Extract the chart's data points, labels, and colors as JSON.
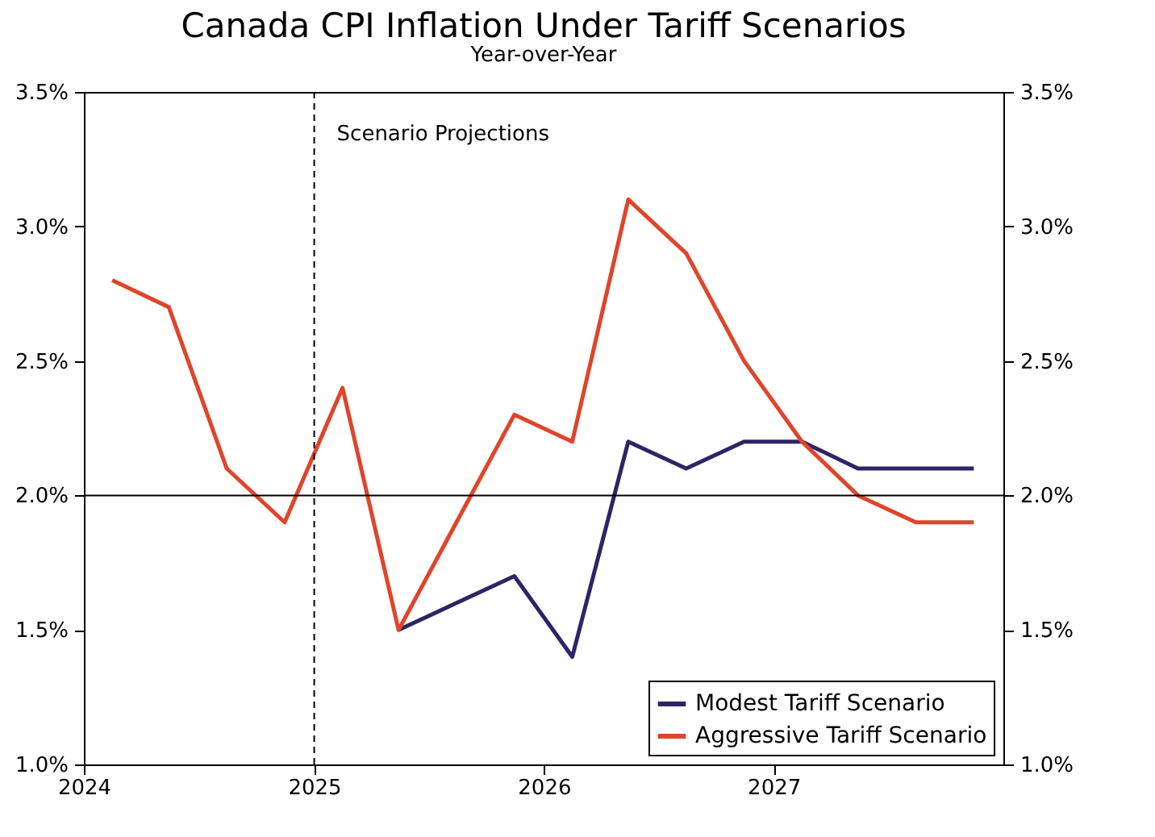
{
  "chart_data": {
    "type": "line",
    "title": "Canada CPI Inflation Under Tariff Scenarios",
    "subtitle": "Year-over-Year",
    "x": [
      "2024-02-15",
      "2024-05-15",
      "2024-08-15",
      "2024-11-15",
      "2025-02-15",
      "2025-05-15",
      "2025-08-15",
      "2025-11-15",
      "2026-02-15",
      "2026-05-15",
      "2026-08-15",
      "2026-11-15",
      "2027-02-15",
      "2027-05-15",
      "2027-08-15",
      "2027-11-15"
    ],
    "series": [
      {
        "name": "Modest Tariff Scenario",
        "color": "#2e2466",
        "values": [
          null,
          null,
          null,
          null,
          null,
          1.5,
          1.6,
          1.7,
          1.4,
          2.2,
          2.1,
          2.2,
          2.2,
          2.1,
          2.1,
          2.1
        ]
      },
      {
        "name": "Aggressive Tariff Scenario",
        "color": "#e0442a",
        "values": [
          2.8,
          2.7,
          2.1,
          1.9,
          2.4,
          1.5,
          1.9,
          2.3,
          2.2,
          3.1,
          2.9,
          2.5,
          2.2,
          2.0,
          1.9,
          1.9
        ]
      }
    ],
    "xlim": [
      "2024-01-01",
      "2028-01-01"
    ],
    "xticks": [
      {
        "value": "2024",
        "label": "2024"
      },
      {
        "value": "2025",
        "label": "2025"
      },
      {
        "value": "2026",
        "label": "2026"
      },
      {
        "value": "2027",
        "label": "2027"
      }
    ],
    "ylim": [
      1.0,
      3.5
    ],
    "yticks": [
      {
        "value": 1.0,
        "label": "1.0%"
      },
      {
        "value": 1.5,
        "label": "1.5%"
      },
      {
        "value": 2.0,
        "label": "2.0%"
      },
      {
        "value": 2.5,
        "label": "2.5%"
      },
      {
        "value": 3.0,
        "label": "3.0%"
      },
      {
        "value": 3.5,
        "label": "3.5%"
      }
    ],
    "y2lim": [
      1.0,
      3.5
    ],
    "y2ticks": [
      {
        "value": 1.0,
        "label": "1.0%"
      },
      {
        "value": 1.5,
        "label": "1.5%"
      },
      {
        "value": 2.0,
        "label": "2.0%"
      },
      {
        "value": 2.5,
        "label": "2.5%"
      },
      {
        "value": 3.0,
        "label": "3.0%"
      },
      {
        "value": 3.5,
        "label": "3.5%"
      }
    ],
    "ref_lines": [
      {
        "axis": "y",
        "value": 2.0,
        "color": "#000000",
        "line_style": "solid"
      },
      {
        "axis": "x",
        "value": "2025-01-01",
        "label": "Scenario Projections",
        "color": "#000000",
        "line_style": "dashed"
      }
    ],
    "grid": false,
    "legend": "bottom right",
    "line_style": "solid"
  }
}
